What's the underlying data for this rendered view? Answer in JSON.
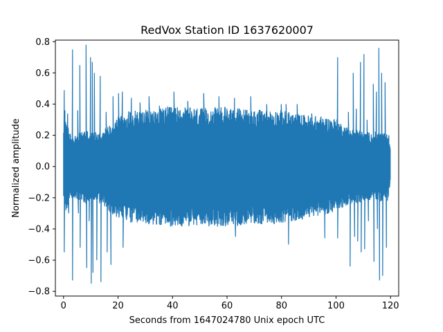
{
  "chart_data": {
    "type": "line",
    "title": "RedVox Station ID 1637620007",
    "xlabel": "Seconds from 1647024780 Unix epoch UTC",
    "ylabel": "Normalized amplitude",
    "xlim": [
      -3,
      123
    ],
    "ylim": [
      -0.83,
      0.81
    ],
    "xticks": [
      0,
      20,
      40,
      60,
      80,
      100,
      120
    ],
    "yticks": [
      -0.8,
      -0.6,
      -0.4,
      -0.2,
      0.0,
      0.2,
      0.4,
      0.6,
      0.8
    ],
    "xtick_labels": [
      "0",
      "20",
      "40",
      "60",
      "80",
      "100",
      "120"
    ],
    "ytick_labels": [
      "−0.8",
      "−0.6",
      "−0.4",
      "−0.2",
      "0.0",
      "0.2",
      "0.4",
      "0.6",
      "0.8"
    ],
    "grid": false,
    "series": [
      {
        "color": "#1f77b4",
        "envelope": {
          "x": [
            0,
            1,
            2,
            4,
            6,
            8,
            10,
            12,
            15,
            18,
            20,
            25,
            30,
            40,
            50,
            60,
            70,
            80,
            85,
            90,
            95,
            100,
            103,
            106,
            108,
            110,
            113,
            115,
            117,
            119,
            120
          ],
          "upper": [
            0.2,
            0.3,
            0.2,
            0.18,
            0.2,
            0.22,
            0.2,
            0.2,
            0.22,
            0.26,
            0.3,
            0.33,
            0.33,
            0.35,
            0.34,
            0.35,
            0.33,
            0.33,
            0.31,
            0.3,
            0.29,
            0.28,
            0.24,
            0.22,
            0.22,
            0.2,
            0.2,
            0.2,
            0.2,
            0.19,
            0.1
          ],
          "lower": [
            -0.2,
            -0.3,
            -0.2,
            -0.18,
            -0.2,
            -0.22,
            -0.2,
            -0.2,
            -0.24,
            -0.28,
            -0.3,
            -0.33,
            -0.34,
            -0.35,
            -0.35,
            -0.35,
            -0.34,
            -0.33,
            -0.32,
            -0.3,
            -0.28,
            -0.27,
            -0.23,
            -0.22,
            -0.22,
            -0.2,
            -0.2,
            -0.2,
            -0.2,
            -0.2,
            -0.1
          ]
        },
        "spikes": [
          {
            "x": 0.3,
            "y": 0.49
          },
          {
            "x": 0.3,
            "y": -0.55
          },
          {
            "x": 0.6,
            "y": 0.36
          },
          {
            "x": 1.6,
            "y": 0.34
          },
          {
            "x": 1.9,
            "y": -0.3
          },
          {
            "x": 3.3,
            "y": 0.75
          },
          {
            "x": 3.4,
            "y": -0.73
          },
          {
            "x": 5.2,
            "y": 0.36
          },
          {
            "x": 5.5,
            "y": -0.3
          },
          {
            "x": 6.0,
            "y": 0.65
          },
          {
            "x": 6.1,
            "y": -0.52
          },
          {
            "x": 8.3,
            "y": 0.78
          },
          {
            "x": 8.5,
            "y": -0.65
          },
          {
            "x": 9.5,
            "y": -0.35
          },
          {
            "x": 9.9,
            "y": 0.7
          },
          {
            "x": 10.2,
            "y": -0.75
          },
          {
            "x": 10.6,
            "y": 0.67
          },
          {
            "x": 10.9,
            "y": -0.68
          },
          {
            "x": 11.3,
            "y": 0.6
          },
          {
            "x": 12.3,
            "y": -0.6
          },
          {
            "x": 13.5,
            "y": 0.58
          },
          {
            "x": 13.8,
            "y": -0.74
          },
          {
            "x": 15.7,
            "y": 0.35
          },
          {
            "x": 16.0,
            "y": -0.55
          },
          {
            "x": 17.4,
            "y": -0.63
          },
          {
            "x": 18.2,
            "y": 0.45
          },
          {
            "x": 20.3,
            "y": 0.47
          },
          {
            "x": 21.6,
            "y": 0.48
          },
          {
            "x": 21.9,
            "y": -0.52
          },
          {
            "x": 25.0,
            "y": 0.44
          },
          {
            "x": 28.1,
            "y": 0.41
          },
          {
            "x": 31.4,
            "y": 0.45
          },
          {
            "x": 35.2,
            "y": 0.39
          },
          {
            "x": 40.6,
            "y": 0.48
          },
          {
            "x": 45.7,
            "y": 0.42
          },
          {
            "x": 51.5,
            "y": 0.47
          },
          {
            "x": 57.1,
            "y": 0.45
          },
          {
            "x": 62.8,
            "y": 0.44
          },
          {
            "x": 63.2,
            "y": -0.45
          },
          {
            "x": 68.8,
            "y": 0.45
          },
          {
            "x": 74.6,
            "y": 0.4
          },
          {
            "x": 80.0,
            "y": 0.4
          },
          {
            "x": 81.7,
            "y": 0.4
          },
          {
            "x": 82.6,
            "y": -0.5
          },
          {
            "x": 85.8,
            "y": 0.4
          },
          {
            "x": 91.1,
            "y": 0.34
          },
          {
            "x": 95.3,
            "y": 0.26
          },
          {
            "x": 96.0,
            "y": -0.46
          },
          {
            "x": 100.6,
            "y": 0.7
          },
          {
            "x": 100.6,
            "y": -0.46
          },
          {
            "x": 104.6,
            "y": 0.35
          },
          {
            "x": 105.2,
            "y": -0.64
          },
          {
            "x": 106.3,
            "y": 0.6
          },
          {
            "x": 106.9,
            "y": -0.45
          },
          {
            "x": 107.5,
            "y": 0.37
          },
          {
            "x": 108.0,
            "y": -0.48
          },
          {
            "x": 109.0,
            "y": 0.67
          },
          {
            "x": 109.3,
            "y": -0.55
          },
          {
            "x": 110.3,
            "y": 0.72
          },
          {
            "x": 110.5,
            "y": -0.53
          },
          {
            "x": 111.4,
            "y": 0.3
          },
          {
            "x": 112.0,
            "y": -0.35
          },
          {
            "x": 113.7,
            "y": 0.53
          },
          {
            "x": 114.0,
            "y": -0.61
          },
          {
            "x": 114.9,
            "y": 0.48
          },
          {
            "x": 115.2,
            "y": -0.4
          },
          {
            "x": 115.7,
            "y": 0.76
          },
          {
            "x": 116.0,
            "y": -0.73
          },
          {
            "x": 116.8,
            "y": 0.6
          },
          {
            "x": 117.2,
            "y": -0.7
          },
          {
            "x": 118.1,
            "y": 0.54
          },
          {
            "x": 118.5,
            "y": -0.52
          },
          {
            "x": 119.4,
            "y": 0.2
          },
          {
            "x": 119.7,
            "y": -0.1
          }
        ]
      }
    ]
  }
}
